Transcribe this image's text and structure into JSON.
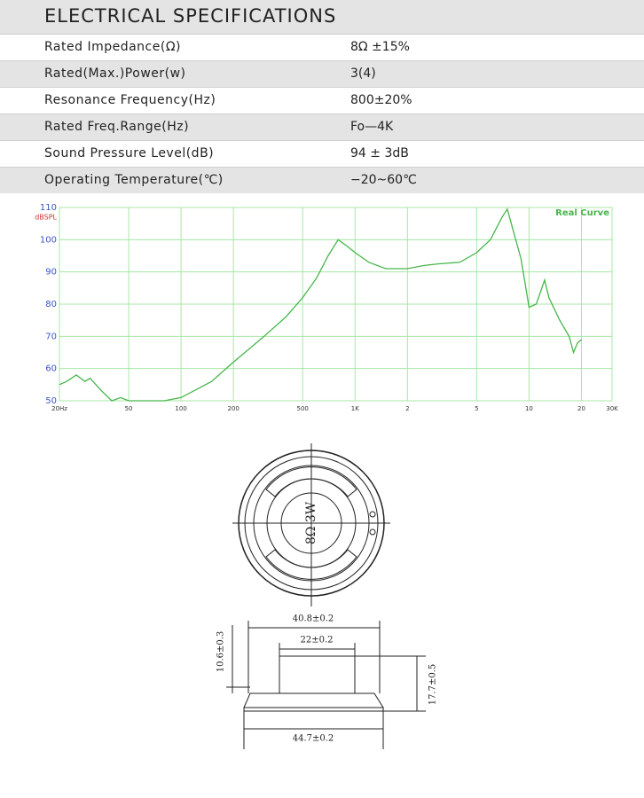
{
  "header": {
    "title": "ELECTRICAL SPECIFICATIONS"
  },
  "table": {
    "rows": [
      [
        "Rated Impedance(Ω)",
        "8Ω ±15%"
      ],
      [
        "Rated(Max.)Power(w)",
        "3(4)"
      ],
      [
        "Resonance Frequency(Hz)",
        "800±20%"
      ],
      [
        "Rated Freq.Range(Hz)",
        "Fo—4K"
      ],
      [
        "Sound Pressure Level(dB)",
        "94 ± 3dB"
      ],
      [
        "Operating Temperature(℃)",
        "−20~60℃"
      ]
    ]
  },
  "chart_data": {
    "type": "line",
    "log_x": true,
    "y_label": "dBSPL",
    "x": [
      20,
      22,
      25,
      28,
      30,
      35,
      40,
      45,
      50,
      60,
      80,
      100,
      150,
      200,
      300,
      400,
      500,
      600,
      700,
      800,
      900,
      1000,
      1200,
      1500,
      2000,
      2500,
      3000,
      4000,
      5000,
      6000,
      7000,
      7500,
      8000,
      9000,
      10000,
      11000,
      12300,
      13000,
      15000,
      17000,
      18000,
      19000,
      20000
    ],
    "series": [
      {
        "name": "Real Curve",
        "color": "#46b64a",
        "values": [
          55,
          56,
          58,
          56,
          57,
          53,
          50,
          51,
          50,
          50,
          50,
          51,
          56,
          62,
          70,
          76,
          82,
          88,
          95,
          100,
          98,
          96,
          93,
          91,
          91,
          92,
          92.5,
          93,
          96,
          100,
          107,
          109.5,
          104,
          94,
          79,
          80,
          87.5,
          82,
          75,
          70,
          65,
          68,
          69
        ]
      }
    ],
    "xlim": [
      20,
      30000
    ],
    "ylim": [
      50,
      110
    ],
    "xticks": [
      {
        "value": 20,
        "label": "20Hz"
      },
      50,
      100,
      200,
      500,
      {
        "value": 1000,
        "label": "1K"
      },
      {
        "value": 2000,
        "label": "2"
      },
      {
        "value": 5000,
        "label": "5"
      },
      {
        "value": 10000,
        "label": "10"
      },
      {
        "value": 20000,
        "label": "20"
      },
      {
        "value": 30000,
        "label": "30K"
      }
    ],
    "yticks": [
      50,
      60,
      70,
      80,
      90,
      100,
      110
    ],
    "grid": true,
    "grid_color": "#a8e6a8",
    "legend": "upper right"
  },
  "diagrams": {
    "top_label": "8Ω 3W",
    "dimensions": [
      "40.8±0.2",
      "22±0.2",
      "10.6±0.3",
      "17.7±0.5",
      "44.7±0.2"
    ]
  }
}
